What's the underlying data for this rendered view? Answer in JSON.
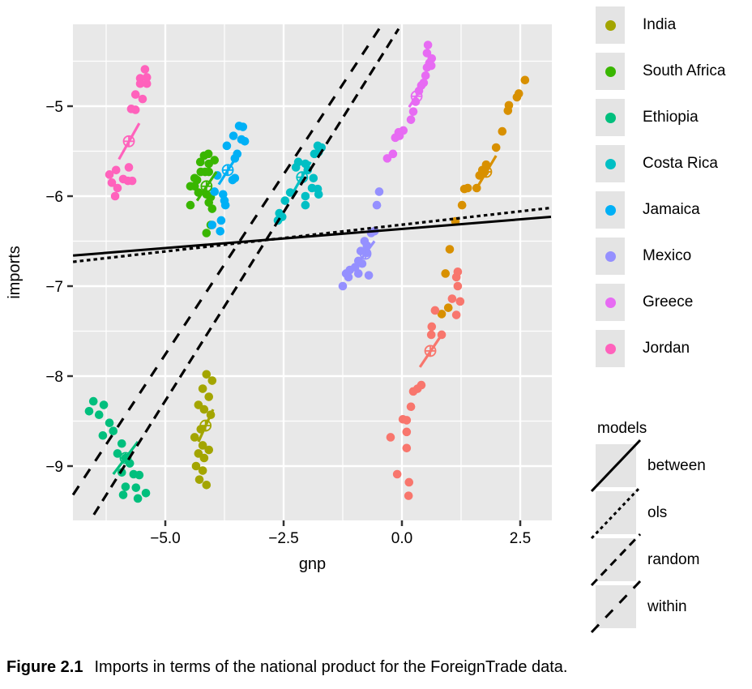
{
  "figure": {
    "caption_label": "Figure 2.1",
    "caption_text": "Imports in terms of the national product for the ForeignTrade data."
  },
  "axes": {
    "x": {
      "label": "gnp",
      "range": [
        -6.95,
        3.17
      ],
      "ticks": [
        -5.0,
        -2.5,
        0.0,
        2.5
      ],
      "tick_labels": [
        "−5.0",
        "−2.5",
        "0.0",
        "2.5"
      ],
      "minor_ticks": [
        -6.25,
        -3.75,
        -1.25,
        1.25
      ]
    },
    "y": {
      "label": "imports",
      "range": [
        -9.6,
        -4.09
      ],
      "ticks": [
        -5,
        -6,
        -7,
        -8,
        -9
      ],
      "tick_labels": [
        "−5",
        "−6",
        "−7",
        "−8",
        "−9"
      ],
      "minor_ticks": [
        -4.5,
        -5.5,
        -6.5,
        -7.5,
        -8.5
      ]
    }
  },
  "legend_countries": {
    "items": [
      {
        "label": "India",
        "color": "#A3A500"
      },
      {
        "label": "South Africa",
        "color": "#39B600"
      },
      {
        "label": "Ethiopia",
        "color": "#00BF7D"
      },
      {
        "label": "Costa Rica",
        "color": "#00BFC4"
      },
      {
        "label": "Jamaica",
        "color": "#00B0F6"
      },
      {
        "label": "Mexico",
        "color": "#9590FF"
      },
      {
        "label": "Greece",
        "color": "#E76BF3"
      },
      {
        "label": "Jordan",
        "color": "#FF62BC"
      }
    ]
  },
  "legend_models": {
    "title": "models",
    "items": [
      {
        "label": "between",
        "dash": ""
      },
      {
        "label": "ols",
        "dash": "4 4"
      },
      {
        "label": "random",
        "dash": "10 7"
      },
      {
        "label": "within",
        "dash": "13 12"
      }
    ]
  },
  "chart_data": {
    "type": "scatter",
    "title": "",
    "xlabel": "gnp",
    "ylabel": "imports",
    "xlim": [
      -6.95,
      3.17
    ],
    "ylim": [
      -9.6,
      -4.09
    ],
    "grid": "on",
    "legend_position": "right",
    "series": [
      {
        "name": "India",
        "color": "#A3A500",
        "points": [
          [
            -4.13,
            -7.98
          ],
          [
            -4.01,
            -8.05
          ],
          [
            -4.21,
            -8.14
          ],
          [
            -4.08,
            -8.23
          ],
          [
            -4.3,
            -8.32
          ],
          [
            -4.18,
            -8.37
          ],
          [
            -4.04,
            -8.43
          ],
          [
            -4.25,
            -8.59
          ],
          [
            -4.38,
            -8.68
          ],
          [
            -4.21,
            -8.77
          ],
          [
            -4.08,
            -8.82
          ],
          [
            -4.3,
            -8.86
          ],
          [
            -4.18,
            -8.91
          ],
          [
            -4.35,
            -9.0
          ],
          [
            -4.21,
            -9.05
          ],
          [
            -4.28,
            -9.15
          ],
          [
            -4.13,
            -9.21
          ]
        ],
        "fit_line": [
          [
            -4.3,
            -8.73
          ],
          [
            -3.99,
            -8.37
          ]
        ],
        "center": [
          -4.15,
          -8.55
        ]
      },
      {
        "name": "South Africa",
        "color": "#39B600",
        "points": [
          [
            -4.18,
            -5.55
          ],
          [
            -4.09,
            -5.53
          ],
          [
            -4.26,
            -5.62
          ],
          [
            -4.08,
            -5.64
          ],
          [
            -3.96,
            -5.6
          ],
          [
            -4.25,
            -5.73
          ],
          [
            -4.16,
            -5.73
          ],
          [
            -4.08,
            -5.73
          ],
          [
            -4.38,
            -5.8
          ],
          [
            -4.33,
            -5.82
          ],
          [
            -4.47,
            -5.89
          ],
          [
            -4.38,
            -5.89
          ],
          [
            -4.3,
            -5.96
          ],
          [
            -4.13,
            -5.98
          ],
          [
            -4.04,
            -6.01
          ],
          [
            -4.08,
            -6.07
          ],
          [
            -4.47,
            -6.1
          ],
          [
            -4.01,
            -6.14
          ],
          [
            -4.04,
            -6.32
          ],
          [
            -4.13,
            -6.41
          ]
        ],
        "fit_line": [
          [
            -4.33,
            -6.05
          ],
          [
            -3.92,
            -5.73
          ]
        ],
        "center": [
          -4.13,
          -5.89
        ]
      },
      {
        "name": "Ethiopia",
        "color": "#00BF7D",
        "points": [
          [
            -6.52,
            -8.28
          ],
          [
            -6.3,
            -8.32
          ],
          [
            -6.61,
            -8.39
          ],
          [
            -6.4,
            -8.43
          ],
          [
            -6.18,
            -8.52
          ],
          [
            -6.1,
            -8.61
          ],
          [
            -6.32,
            -8.66
          ],
          [
            -5.92,
            -8.75
          ],
          [
            -6.01,
            -8.86
          ],
          [
            -5.84,
            -8.91
          ],
          [
            -5.75,
            -8.97
          ],
          [
            -5.92,
            -9.07
          ],
          [
            -5.67,
            -9.09
          ],
          [
            -5.55,
            -9.1
          ],
          [
            -5.84,
            -9.23
          ],
          [
            -5.62,
            -9.24
          ],
          [
            -5.89,
            -9.32
          ],
          [
            -5.41,
            -9.3
          ],
          [
            -5.58,
            -9.36
          ]
        ],
        "fit_line": [
          [
            -6.1,
            -9.09
          ],
          [
            -5.58,
            -8.73
          ]
        ],
        "center": [
          -5.84,
          -8.91
        ]
      },
      {
        "name": "Costa Rica",
        "color": "#00BFC4",
        "points": [
          [
            -1.78,
            -5.44
          ],
          [
            -1.7,
            -5.46
          ],
          [
            -1.76,
            -5.51
          ],
          [
            -1.85,
            -5.53
          ],
          [
            -2.19,
            -5.62
          ],
          [
            -2.04,
            -5.64
          ],
          [
            -2.24,
            -5.68
          ],
          [
            -1.99,
            -5.71
          ],
          [
            -1.87,
            -5.8
          ],
          [
            -1.9,
            -5.91
          ],
          [
            -1.78,
            -5.92
          ],
          [
            -1.76,
            -5.98
          ],
          [
            -2.04,
            -6.0
          ],
          [
            -2.36,
            -5.96
          ],
          [
            -2.47,
            -6.05
          ],
          [
            -2.04,
            -6.1
          ],
          [
            -2.59,
            -6.19
          ],
          [
            -2.53,
            -6.23
          ],
          [
            -2.62,
            -6.27
          ]
        ],
        "fit_line": [
          [
            -2.29,
            -5.95
          ],
          [
            -1.93,
            -5.62
          ]
        ],
        "center": [
          -2.11,
          -5.79
        ]
      },
      {
        "name": "Jamaica",
        "color": "#00B0F6",
        "points": [
          [
            -3.44,
            -5.22
          ],
          [
            -3.36,
            -5.23
          ],
          [
            -3.56,
            -5.33
          ],
          [
            -3.39,
            -5.37
          ],
          [
            -3.32,
            -5.39
          ],
          [
            -3.7,
            -5.44
          ],
          [
            -3.48,
            -5.53
          ],
          [
            -3.53,
            -5.58
          ],
          [
            -3.9,
            -5.77
          ],
          [
            -3.58,
            -5.82
          ],
          [
            -3.53,
            -5.8
          ],
          [
            -3.96,
            -5.95
          ],
          [
            -3.78,
            -5.98
          ],
          [
            -3.75,
            -6.05
          ],
          [
            -3.73,
            -6.1
          ],
          [
            -3.82,
            -6.27
          ],
          [
            -4.01,
            -6.32
          ],
          [
            -3.84,
            -6.39
          ]
        ],
        "fit_line": [
          [
            -3.87,
            -5.87
          ],
          [
            -3.48,
            -5.55
          ]
        ],
        "center": [
          -3.68,
          -5.71
        ]
      },
      {
        "name": "Mexico",
        "color": "#9590FF",
        "points": [
          [
            -0.48,
            -5.95
          ],
          [
            -0.53,
            -6.1
          ],
          [
            -0.58,
            -6.39
          ],
          [
            -0.65,
            -6.41
          ],
          [
            -0.79,
            -6.5
          ],
          [
            -0.74,
            -6.55
          ],
          [
            -0.87,
            -6.61
          ],
          [
            -0.74,
            -6.63
          ],
          [
            -0.92,
            -6.72
          ],
          [
            -0.84,
            -6.75
          ],
          [
            -0.99,
            -6.79
          ],
          [
            -1.1,
            -6.82
          ],
          [
            -0.92,
            -6.86
          ],
          [
            -1.18,
            -6.86
          ],
          [
            -1.13,
            -6.9
          ],
          [
            -0.7,
            -6.88
          ],
          [
            -1.25,
            -7.0
          ]
        ],
        "fit_line": [
          [
            -0.96,
            -6.77
          ],
          [
            -0.58,
            -6.5
          ]
        ],
        "center": [
          -0.77,
          -6.64
        ]
      },
      {
        "name": "Greece",
        "color": "#E76BF3",
        "points": [
          [
            0.55,
            -4.32
          ],
          [
            0.53,
            -4.41
          ],
          [
            0.63,
            -4.47
          ],
          [
            0.58,
            -4.52
          ],
          [
            0.62,
            -4.55
          ],
          [
            0.53,
            -4.57
          ],
          [
            0.5,
            -4.66
          ],
          [
            0.46,
            -4.74
          ],
          [
            0.41,
            -4.77
          ],
          [
            0.36,
            -4.83
          ],
          [
            0.29,
            -4.95
          ],
          [
            0.24,
            -5.06
          ],
          [
            0.19,
            -5.15
          ],
          [
            0.03,
            -5.27
          ],
          [
            -0.07,
            -5.29
          ],
          [
            -0.05,
            -5.33
          ],
          [
            -0.14,
            -5.35
          ],
          [
            -0.19,
            -5.53
          ],
          [
            -0.31,
            -5.58
          ]
        ],
        "fit_line": [
          [
            0.15,
            -5.01
          ],
          [
            0.46,
            -4.77
          ]
        ],
        "center": [
          0.31,
          -4.89
        ]
      },
      {
        "name": "Jordan",
        "color": "#FF62BC",
        "points": [
          [
            -5.43,
            -4.59
          ],
          [
            -5.39,
            -4.68
          ],
          [
            -5.53,
            -4.69
          ],
          [
            -5.53,
            -4.75
          ],
          [
            -5.39,
            -4.75
          ],
          [
            -5.63,
            -4.87
          ],
          [
            -5.48,
            -4.92
          ],
          [
            -5.72,
            -5.03
          ],
          [
            -5.63,
            -5.04
          ],
          [
            -5.77,
            -5.68
          ],
          [
            -6.04,
            -5.71
          ],
          [
            -6.18,
            -5.76
          ],
          [
            -5.89,
            -5.81
          ],
          [
            -5.79,
            -5.83
          ],
          [
            -5.7,
            -5.83
          ],
          [
            -6.13,
            -5.85
          ],
          [
            -6.01,
            -5.91
          ],
          [
            -6.06,
            -6.0
          ]
        ],
        "fit_line": [
          [
            -5.98,
            -5.59
          ],
          [
            -5.55,
            -5.19
          ]
        ],
        "center": [
          -5.77,
          -5.39
        ]
      },
      {
        "name": "",
        "color": "#D89000",
        "points": [
          [
            2.6,
            -4.71
          ],
          [
            2.47,
            -4.86
          ],
          [
            2.43,
            -4.9
          ],
          [
            2.26,
            -4.99
          ],
          [
            2.24,
            -5.05
          ],
          [
            2.12,
            -5.28
          ],
          [
            1.99,
            -5.46
          ],
          [
            1.78,
            -5.65
          ],
          [
            1.7,
            -5.71
          ],
          [
            1.75,
            -5.73
          ],
          [
            1.64,
            -5.77
          ],
          [
            1.58,
            -5.91
          ],
          [
            1.39,
            -5.91
          ],
          [
            1.32,
            -5.92
          ],
          [
            1.27,
            -6.1
          ],
          [
            1.13,
            -6.28
          ],
          [
            1.01,
            -6.59
          ],
          [
            0.92,
            -6.86
          ],
          [
            0.98,
            -7.24
          ],
          [
            0.84,
            -7.31
          ]
        ],
        "fit_line": [
          [
            1.58,
            -5.91
          ],
          [
            1.99,
            -5.55
          ]
        ],
        "center": [
          1.78,
          -5.73
        ]
      },
      {
        "name": "",
        "color": "#F8766D",
        "points": [
          [
            1.18,
            -6.84
          ],
          [
            1.15,
            -6.9
          ],
          [
            1.18,
            -7.0
          ],
          [
            1.06,
            -7.14
          ],
          [
            1.23,
            -7.17
          ],
          [
            1.15,
            -7.32
          ],
          [
            0.7,
            -7.27
          ],
          [
            0.63,
            -7.45
          ],
          [
            0.62,
            -7.54
          ],
          [
            0.84,
            -7.54
          ],
          [
            0.41,
            -8.1
          ],
          [
            0.33,
            -8.14
          ],
          [
            0.24,
            -8.17
          ],
          [
            0.19,
            -8.34
          ],
          [
            0.02,
            -8.48
          ],
          [
            0.1,
            -8.49
          ],
          [
            0.1,
            -8.62
          ],
          [
            -0.24,
            -8.68
          ],
          [
            0.1,
            -8.8
          ],
          [
            -0.1,
            -9.09
          ],
          [
            0.15,
            -9.18
          ],
          [
            0.14,
            -9.33
          ]
        ],
        "fit_line": [
          [
            0.38,
            -7.9
          ],
          [
            0.84,
            -7.54
          ]
        ],
        "center": [
          0.6,
          -7.72
        ]
      }
    ],
    "model_lines": [
      {
        "name": "between",
        "dash": "",
        "x1": -6.95,
        "y1": -6.66,
        "x2": 3.15,
        "y2": -6.23
      },
      {
        "name": "ols",
        "dash": "4.5 4",
        "x1": -6.95,
        "y1": -6.73,
        "x2": 3.15,
        "y2": -6.13
      },
      {
        "name": "random",
        "dash": "12 8",
        "x1": -6.51,
        "y1": -9.54,
        "x2": -0.07,
        "y2": -4.14
      },
      {
        "name": "within",
        "dash": "13 12",
        "x1": -6.95,
        "y1": -9.32,
        "x2": -0.48,
        "y2": -4.14
      }
    ],
    "colors": {
      "panel_background": "#E8E8E8",
      "gridline": "#FFFFFF",
      "legend_key_background": "#E4E4E4",
      "axis_text": "#000000"
    }
  }
}
